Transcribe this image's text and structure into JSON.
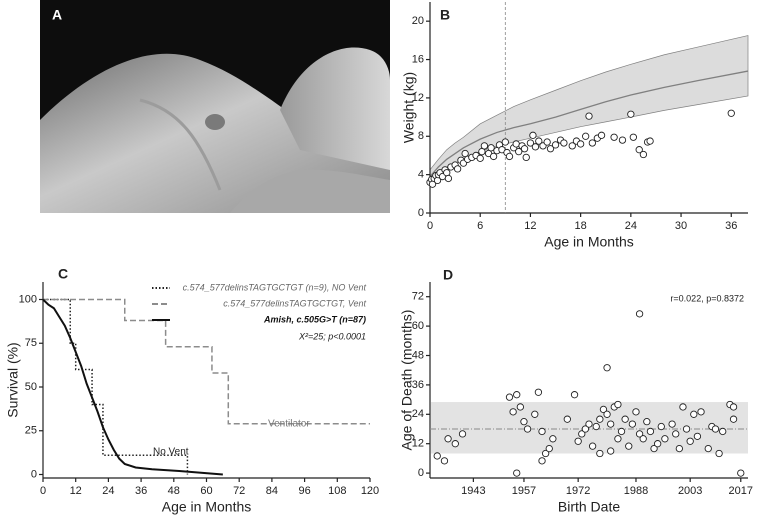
{
  "chart_data": [
    {
      "type": "image",
      "panel": "A"
    },
    {
      "type": "scatter",
      "panel": "B",
      "xlabel": "Age in Months",
      "ylabel": "Weight (kg)",
      "xlim": [
        0,
        38
      ],
      "ylim": [
        0,
        22
      ],
      "xticks": [
        0,
        6,
        12,
        18,
        24,
        30,
        36
      ],
      "yticks": [
        0,
        4,
        8,
        12,
        16,
        20
      ],
      "color": "#ffffff",
      "vline": 9,
      "x": [
        0,
        0.2,
        0.3,
        0.5,
        0.7,
        0.9,
        1,
        1.2,
        1.5,
        1.8,
        2,
        2.2,
        2.5,
        3,
        3.3,
        3.7,
        4,
        4.2,
        4.5,
        5,
        5.5,
        6,
        6.2,
        6.5,
        7,
        7.3,
        7.6,
        8,
        8.3,
        8.6,
        9,
        9.2,
        9.5,
        10,
        10.3,
        10.6,
        11,
        11.3,
        11.5,
        12,
        12.3,
        12.6,
        13,
        13.5,
        14,
        14.4,
        15,
        15.6,
        16,
        17,
        17.5,
        18,
        18.6,
        19,
        19.4,
        20,
        20.5,
        22,
        23,
        24,
        24.3,
        25,
        25.5,
        26,
        26.3,
        36
      ],
      "values": [
        3.2,
        3.5,
        3.0,
        3.6,
        3.9,
        3.4,
        4.0,
        4.2,
        3.8,
        4.5,
        4.2,
        3.6,
        4.8,
        5.0,
        4.6,
        5.5,
        5.2,
        6.2,
        5.6,
        5.8,
        6.0,
        5.7,
        6.4,
        7.0,
        6.2,
        6.8,
        5.9,
        6.5,
        7.1,
        6.6,
        7.4,
        6.3,
        5.9,
        6.8,
        7.2,
        6.4,
        7.0,
        6.7,
        5.8,
        7.3,
        8.1,
        6.9,
        7.5,
        7.0,
        7.4,
        6.7,
        7.1,
        7.6,
        7.3,
        7.0,
        7.5,
        7.2,
        8.0,
        10.1,
        7.3,
        7.8,
        8.1,
        7.9,
        7.6,
        10.3,
        7.9,
        6.6,
        6.1,
        7.4,
        7.5,
        10.4
      ],
      "reference": {
        "x": [
          0,
          1,
          2,
          3,
          4,
          6,
          8,
          10,
          12,
          15,
          18,
          21,
          24,
          28,
          32,
          38
        ],
        "median": [
          3.8,
          4.8,
          5.6,
          6.2,
          6.8,
          7.7,
          8.4,
          8.9,
          9.3,
          10.0,
          10.8,
          11.6,
          12.3,
          13.1,
          13.8,
          14.8
        ],
        "lower": [
          3.3,
          4.2,
          4.8,
          5.2,
          5.6,
          6.4,
          7.0,
          7.4,
          7.8,
          8.4,
          9.0,
          9.5,
          10.0,
          10.7,
          11.3,
          12.2
        ],
        "upper": [
          4.5,
          5.6,
          6.6,
          7.3,
          7.9,
          9.3,
          10.2,
          11.1,
          11.8,
          12.8,
          13.8,
          14.7,
          15.5,
          16.5,
          17.3,
          18.5
        ]
      },
      "band_color": "#dcdcdc",
      "line_color": "#808080"
    },
    {
      "type": "line",
      "panel": "C",
      "xlabel": "Age in Months",
      "ylabel": "Survival (%)",
      "xlim": [
        0,
        120
      ],
      "ylim": [
        -2,
        110
      ],
      "xticks": [
        0,
        12,
        24,
        36,
        48,
        60,
        72,
        84,
        96,
        108,
        120
      ],
      "yticks": [
        0,
        25,
        50,
        75,
        100
      ],
      "series": [
        {
          "name": "c.574_577delinsTAGTGCTGT (n=9), NO Vent",
          "color": "#222222",
          "dash": "dotted",
          "x": [
            0,
            10,
            10,
            12,
            12,
            18,
            18,
            22,
            22,
            53,
            53
          ],
          "values": [
            100,
            100,
            75,
            75,
            60,
            60,
            40,
            40,
            11,
            11,
            0
          ]
        },
        {
          "name": "c.574_577delinsTAGTGCTGT, Vent",
          "color": "#8c8c8c",
          "dash": "dashed",
          "x": [
            0,
            30,
            30,
            45,
            45,
            62,
            62,
            68,
            68,
            120
          ],
          "values": [
            100,
            100,
            88,
            88,
            73,
            73,
            58,
            58,
            29,
            29
          ]
        },
        {
          "name": "Amish, c.505G>T (n=87)",
          "color": "#111111",
          "dash": "solid",
          "x": [
            0,
            2,
            4,
            6,
            8,
            10,
            12,
            14,
            16,
            18,
            20,
            22,
            24,
            26,
            28,
            30,
            34,
            40,
            50,
            58,
            66
          ],
          "values": [
            100,
            97,
            95,
            90,
            85,
            78,
            70,
            62,
            52,
            44,
            36,
            27,
            20,
            14,
            9,
            6,
            4,
            3,
            2,
            1,
            0
          ]
        }
      ],
      "stat": "X²=25; p<0.0001",
      "annotations": [
        "Ventilator",
        "No Vent"
      ]
    },
    {
      "type": "scatter",
      "panel": "D",
      "xlabel": "Birth Date",
      "ylabel": "Age of Death (months)",
      "xlim": [
        1931,
        2019
      ],
      "ylim": [
        -2,
        78
      ],
      "xticks": [
        1943,
        1957,
        1972,
        1988,
        2003,
        2017
      ],
      "yticks": [
        0,
        12,
        24,
        36,
        48,
        60,
        72
      ],
      "color": "#ffffff",
      "band": [
        8,
        29
      ],
      "mean": 18,
      "annotation": "r=0.022, p=0.8372",
      "x": [
        1933,
        1935,
        1936,
        1938,
        1940,
        1953,
        1954,
        1955,
        1955,
        1956,
        1957,
        1958,
        1960,
        1961,
        1962,
        1962,
        1963,
        1964,
        1965,
        1969,
        1971,
        1972,
        1973,
        1974,
        1975,
        1976,
        1977,
        1978,
        1978,
        1979,
        1980,
        1980,
        1981,
        1981,
        1982,
        1983,
        1983,
        1984,
        1985,
        1986,
        1987,
        1988,
        1989,
        1989,
        1990,
        1991,
        1992,
        1993,
        1994,
        1995,
        1996,
        1998,
        1999,
        2000,
        2001,
        2002,
        2003,
        2004,
        2005,
        2006,
        2008,
        2009,
        2010,
        2011,
        2012,
        2014,
        2015,
        2015,
        2017
      ],
      "values": [
        7,
        5,
        14,
        12,
        16,
        31,
        25,
        0,
        32,
        27,
        21,
        18,
        24,
        33,
        17,
        5,
        8,
        10,
        14,
        22,
        32,
        13,
        16,
        18,
        20,
        11,
        19,
        8,
        22,
        26,
        43,
        24,
        9,
        20,
        27,
        14,
        28,
        17,
        22,
        11,
        20,
        25,
        65,
        16,
        14,
        21,
        17,
        10,
        12,
        19,
        14,
        20,
        16,
        10,
        27,
        18,
        13,
        24,
        15,
        25,
        10,
        19,
        18,
        8,
        17,
        28,
        22,
        27,
        0
      ],
      "band_color": "#e3e3e3",
      "line_color": "#888888"
    }
  ]
}
